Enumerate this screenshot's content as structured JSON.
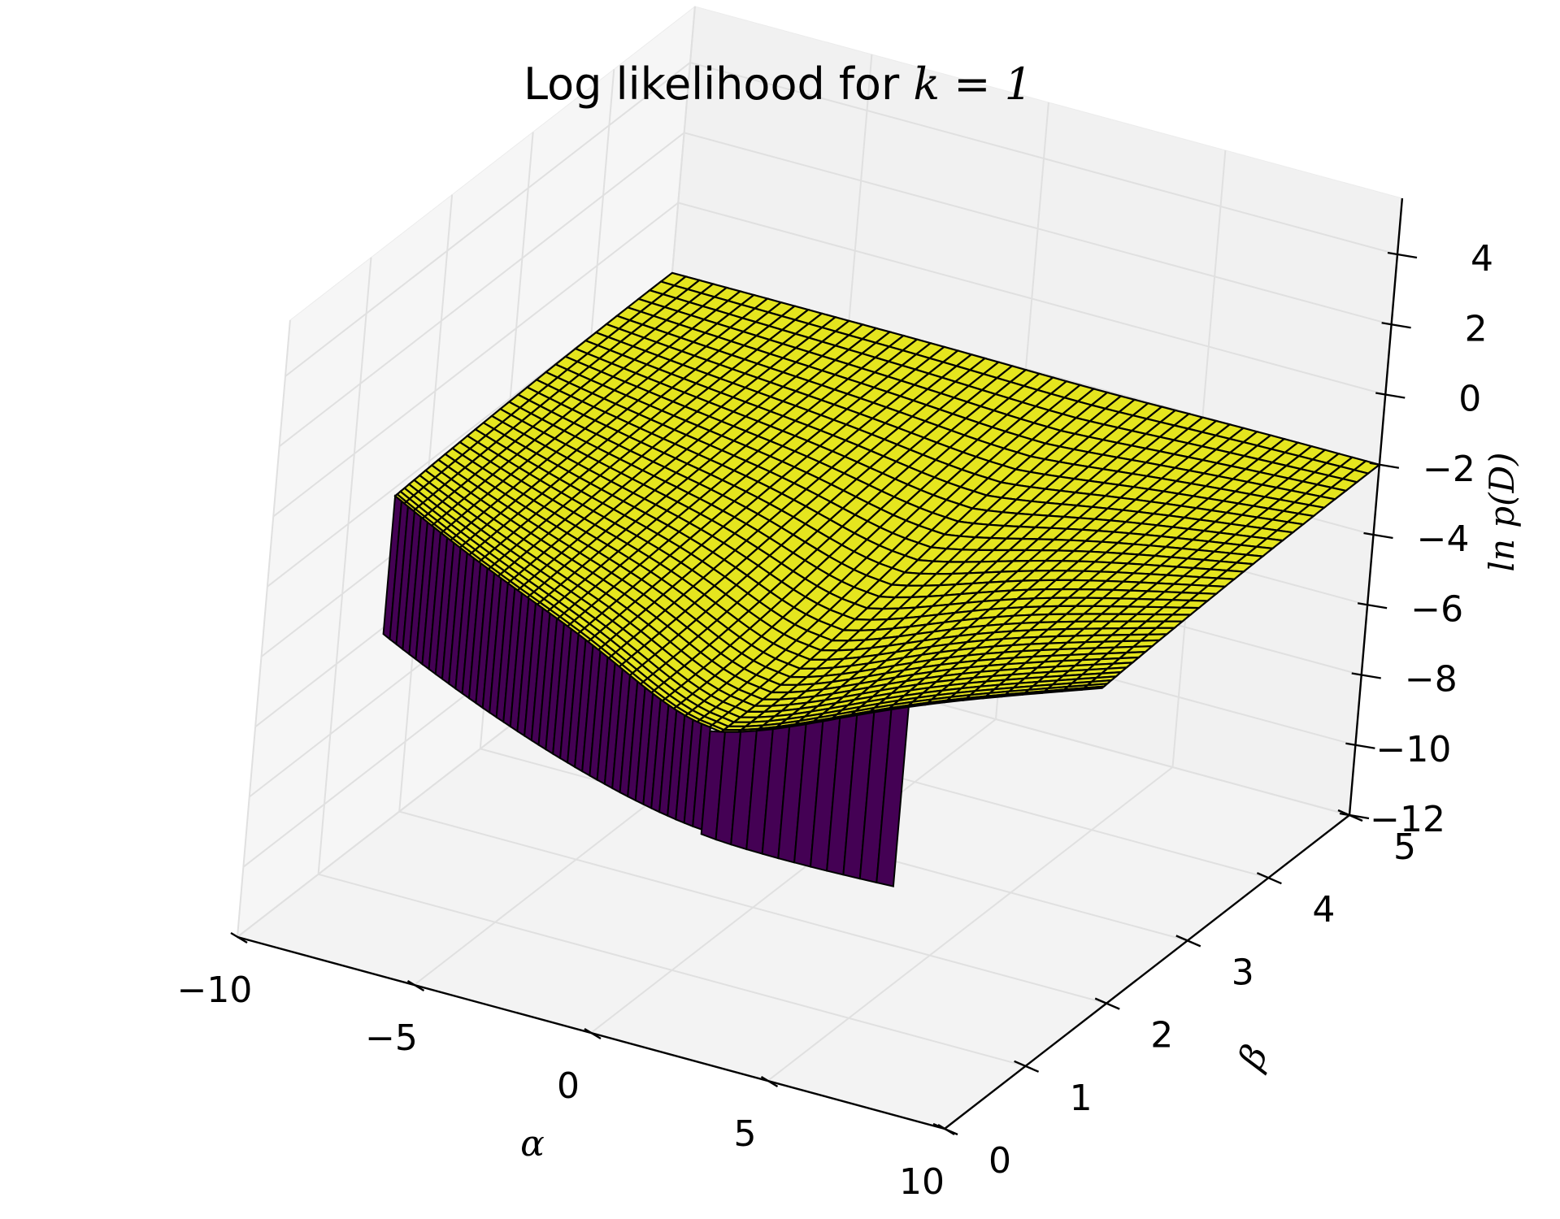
{
  "chart_data": {
    "type": "surface3d",
    "title": {
      "prefix": "Log likelihood for ",
      "math": "k = 1"
    },
    "xlabel": "α",
    "ylabel": "β",
    "zlabel": "ln p(D)",
    "xlim": [
      -10,
      10
    ],
    "ylim": [
      0,
      5
    ],
    "zlim": [
      -12,
      4
    ],
    "x_ticks": [
      "−10",
      "−5",
      "0",
      "5",
      "10"
    ],
    "y_ticks": [
      "0",
      "1",
      "2",
      "3",
      "4",
      "5"
    ],
    "z_ticks": [
      "−12",
      "−10",
      "−8",
      "−6",
      "−4",
      "−2",
      "0",
      "2",
      "4"
    ],
    "grid": true,
    "colors": {
      "surface_high": "#e5e51e",
      "surface_low": "#440154",
      "mesh_lines": "#000000",
      "pane_back": "#f1f1f1",
      "pane_side": "#f6f6f6",
      "pane_floor": "#f3f3f3",
      "gridline": "#e0e0e0"
    },
    "surface_samples": [
      {
        "alpha": -10,
        "beta": 5,
        "value": -2.0
      },
      {
        "alpha": 10,
        "beta": 5,
        "value": -2.5
      },
      {
        "alpha": -10,
        "beta": 0,
        "value": -12.0
      },
      {
        "alpha": 0,
        "beta": 0,
        "value": -12.0
      },
      {
        "alpha": 2,
        "beta": 1.2,
        "value": -6.5
      },
      {
        "alpha": 5,
        "beta": 0,
        "value": -12.0
      }
    ]
  }
}
